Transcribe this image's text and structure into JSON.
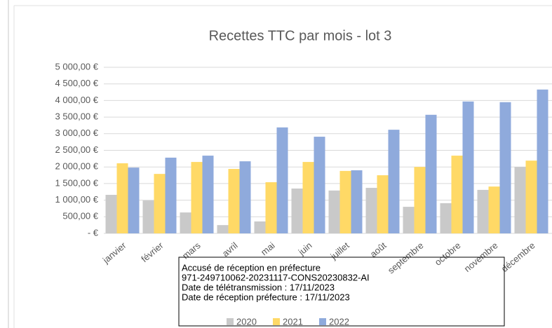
{
  "chart_data": {
    "type": "bar",
    "title": "Recettes TTC par mois - lot 3",
    "categories": [
      "janvier",
      "février",
      "mars",
      "avril",
      "mai",
      "juin",
      "juillet",
      "août",
      "septembre",
      "octobre",
      "novembre",
      "décembre"
    ],
    "series": [
      {
        "name": "2020",
        "color": "#c9c9c9",
        "values": [
          1160,
          990,
          630,
          250,
          360,
          1350,
          1290,
          1370,
          800,
          910,
          1310,
          2000
        ]
      },
      {
        "name": "2021",
        "color": "#ffd966",
        "values": [
          2110,
          1790,
          2150,
          1940,
          1540,
          2150,
          1880,
          1750,
          2000,
          2340,
          1410,
          2190
        ]
      },
      {
        "name": "2022",
        "color": "#8faadc",
        "values": [
          1980,
          2280,
          2340,
          2170,
          3190,
          2910,
          1900,
          3120,
          3570,
          3970,
          3950,
          4330
        ]
      }
    ],
    "ylim": [
      0,
      5000
    ],
    "yticks": [
      {
        "value": 0,
        "label": " -   €"
      },
      {
        "value": 500,
        "label": "500,00 €"
      },
      {
        "value": 1000,
        "label": "1 000,00 €"
      },
      {
        "value": 1500,
        "label": "1 500,00 €"
      },
      {
        "value": 2000,
        "label": "2 000,00 €"
      },
      {
        "value": 2500,
        "label": "2 500,00 €"
      },
      {
        "value": 3000,
        "label": "3 000,00 €"
      },
      {
        "value": 3500,
        "label": "3 500,00 €"
      },
      {
        "value": 4000,
        "label": "4 000,00 €"
      },
      {
        "value": 4500,
        "label": "4 500,00 €"
      },
      {
        "value": 5000,
        "label": "5 000,00 €"
      }
    ],
    "grid": true,
    "legend": "bottom",
    "annotations": [
      "Accusé de réception en préfecture",
      "971-249710062-20231117-CONS20230832-AI",
      "Date de télétransmission : 17/11/2023",
      "Date de réception préfecture : 17/11/2023"
    ]
  }
}
